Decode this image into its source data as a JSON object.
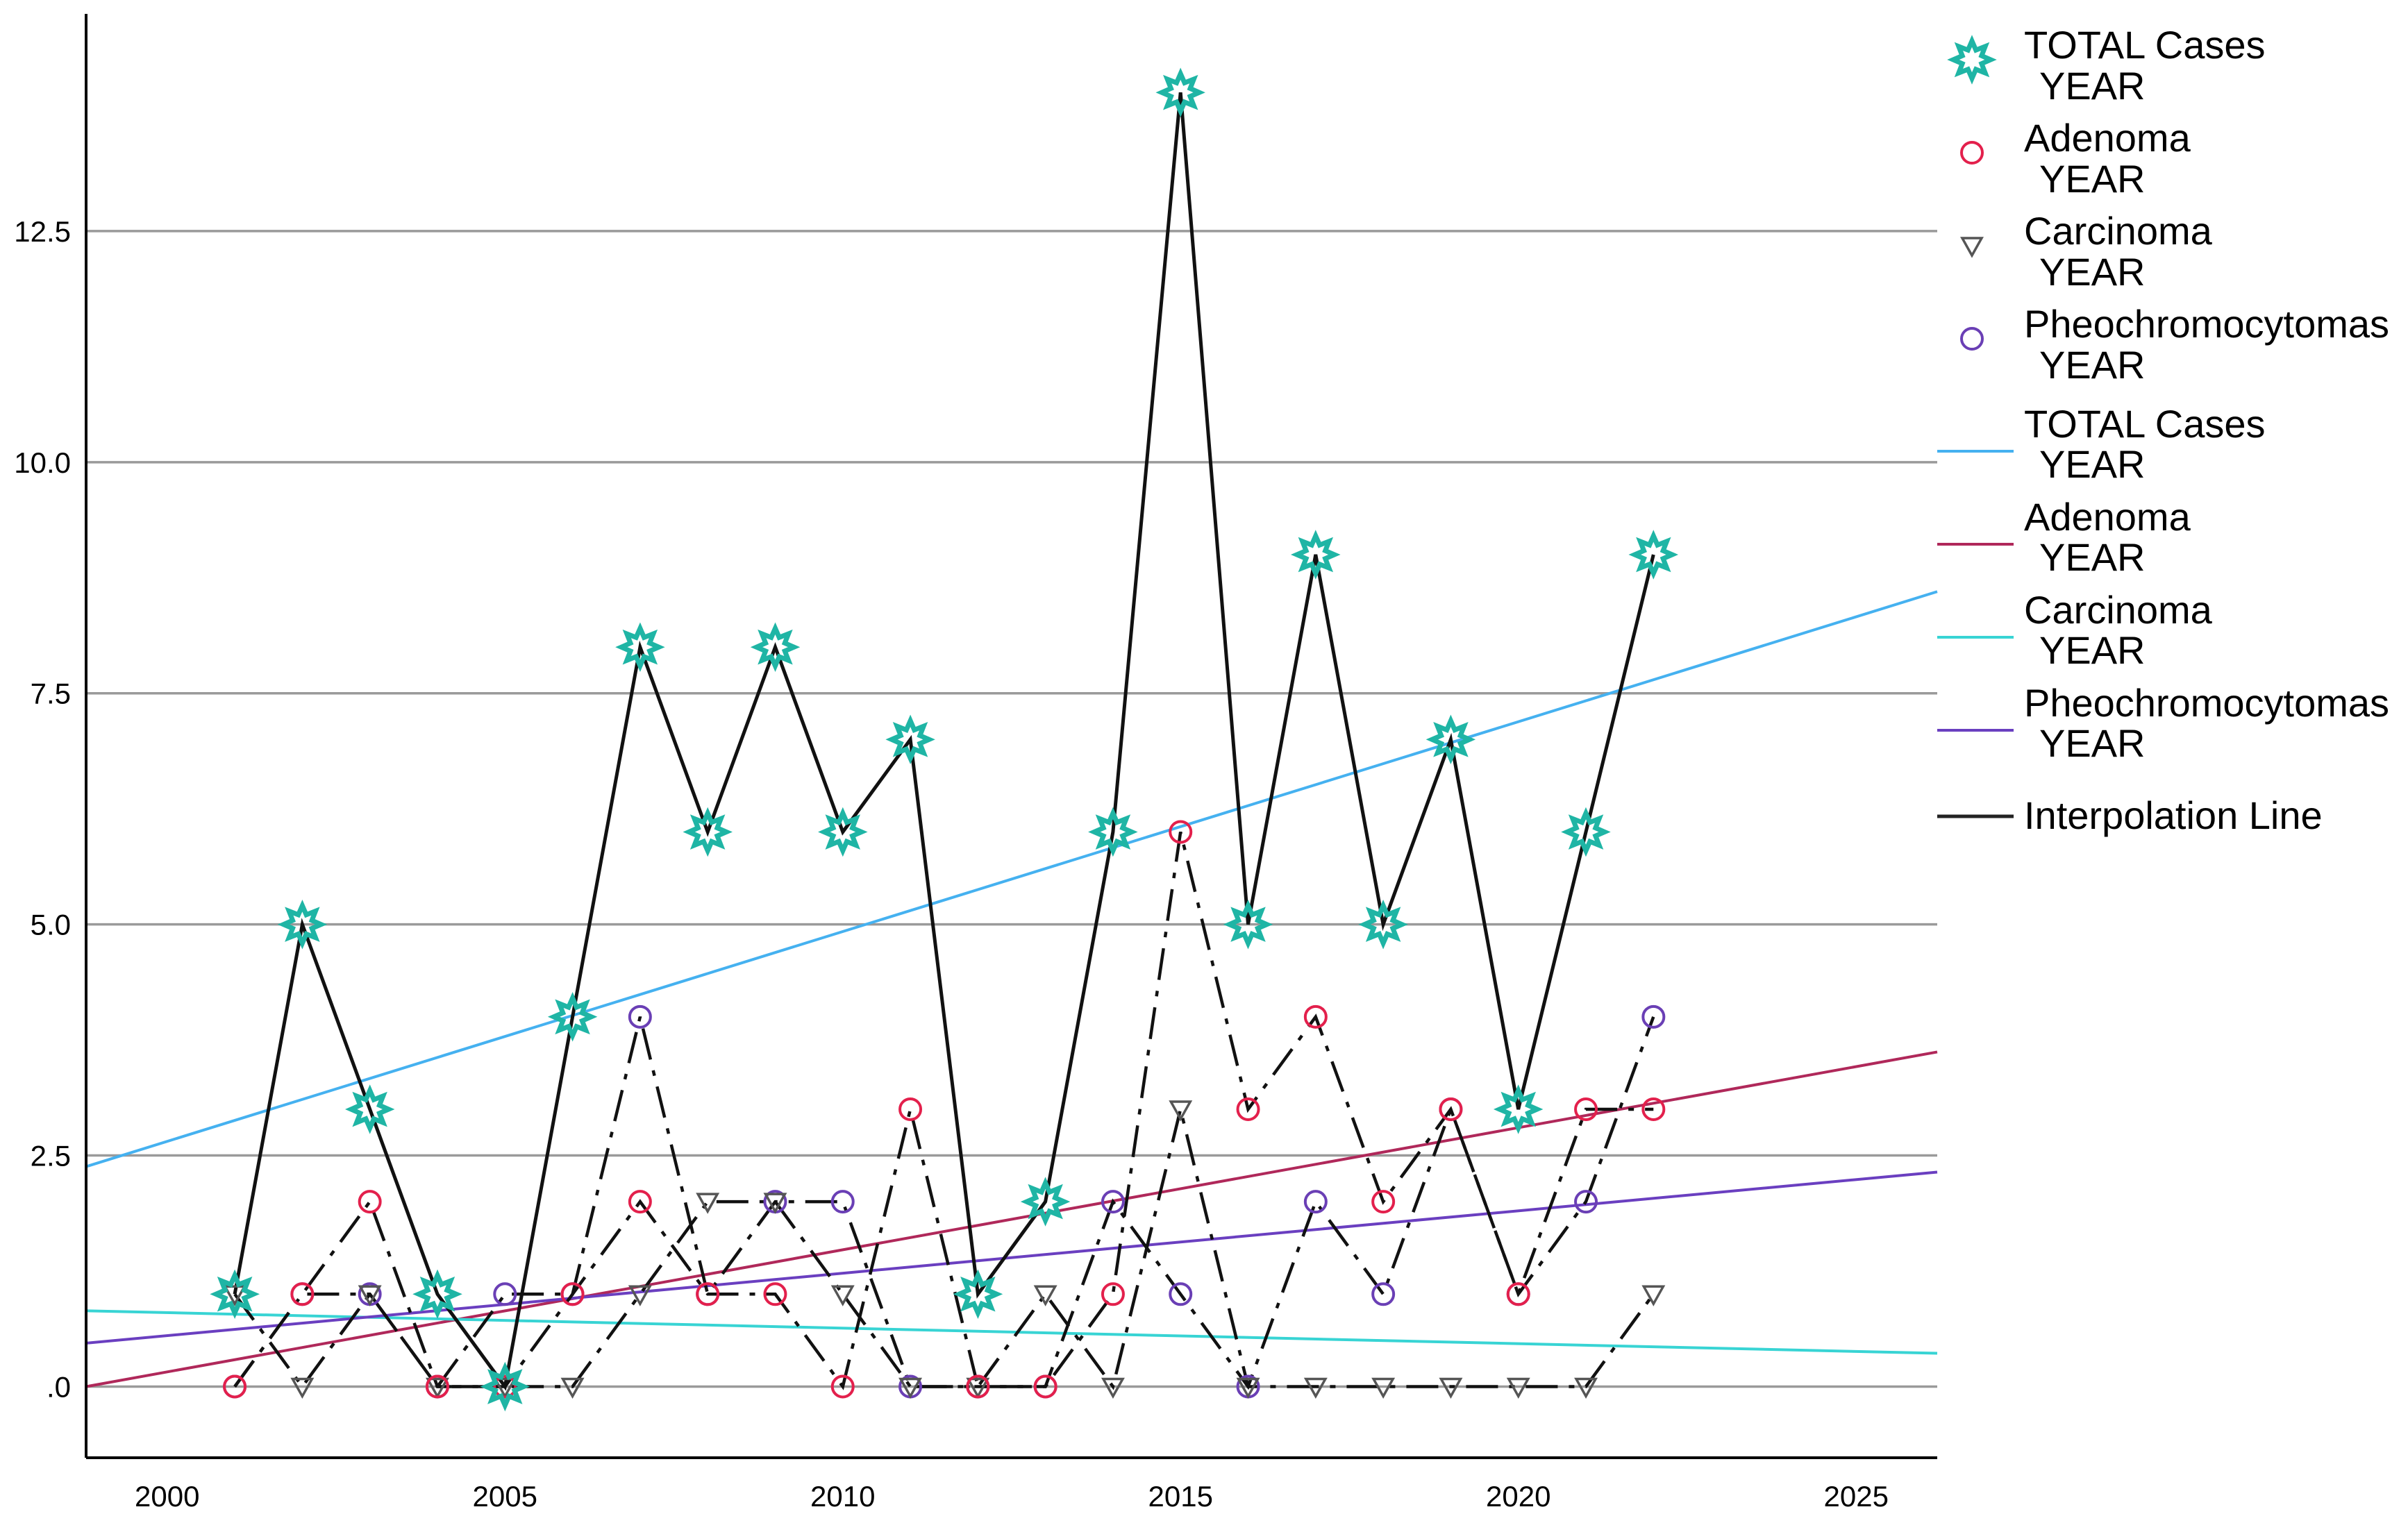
{
  "chart_data": {
    "type": "line",
    "title": "",
    "xlabel": "",
    "ylabel": "",
    "xlim": [
      1998.8,
      2026.2
    ],
    "ylim": [
      -0.77,
      14.85
    ],
    "x_ticks": [
      2000,
      2005,
      2010,
      2015,
      2020,
      2025
    ],
    "x_tick_labels": [
      "2000",
      "2005",
      "2010",
      "2015",
      "2020",
      "2025"
    ],
    "y_ticks": [
      0,
      2.5,
      5.0,
      7.5,
      10.0,
      12.5
    ],
    "y_tick_labels": [
      ".0",
      "2.5",
      "5.0",
      "7.5",
      "10.0",
      "12.5"
    ],
    "grid": "horizontal",
    "legend_position": "right",
    "x": [
      2001,
      2002,
      2003,
      2004,
      2005,
      2006,
      2007,
      2008,
      2009,
      2010,
      2011,
      2012,
      2013,
      2014,
      2015,
      2016,
      2017,
      2018,
      2019,
      2020,
      2021,
      2022
    ],
    "series": [
      {
        "key": "total",
        "name": "TOTAL Cases",
        "name_line2": "YEAR",
        "marker": "star",
        "color": "#1fb5a5",
        "line_style": "solid",
        "values": [
          1,
          5,
          3,
          1,
          0,
          4,
          8,
          6,
          8,
          6,
          7,
          1,
          2,
          6,
          14,
          5,
          9,
          5,
          7,
          3,
          6,
          9
        ]
      },
      {
        "key": "adenoma",
        "name": "Adenoma",
        "name_line2": "YEAR",
        "marker": "circle",
        "color": "#e3204c",
        "line_style": "dashdot",
        "values": [
          0,
          1,
          2,
          0,
          0,
          1,
          2,
          1,
          1,
          0,
          3,
          0,
          0,
          1,
          6,
          3,
          4,
          2,
          3,
          1,
          3,
          3
        ]
      },
      {
        "key": "carcinoma",
        "name": "Carcinoma",
        "name_line2": "YEAR",
        "marker": "triangle-down",
        "color": "#555555",
        "line_style": "dashdot",
        "values": [
          1,
          0,
          1,
          0,
          0,
          0,
          1,
          2,
          2,
          1,
          0,
          0,
          1,
          0,
          3,
          0,
          0,
          0,
          0,
          0,
          0,
          1
        ]
      },
      {
        "key": "pheo",
        "name": "Pheochromocytomas",
        "name_line2": "YEAR",
        "marker": "circle",
        "color": "#6a3fb5",
        "line_style": "dashdot",
        "values": [
          0,
          1,
          1,
          0,
          1,
          1,
          4,
          1,
          2,
          2,
          0,
          0,
          0,
          2,
          1,
          0,
          2,
          1,
          3,
          1,
          2,
          4
        ]
      }
    ],
    "fit_lines": [
      {
        "key": "total-fit",
        "name": "TOTAL Cases",
        "name_line2": "YEAR",
        "color": "#45b1f0",
        "x": [
          1998.8,
          2026.2
        ],
        "y": [
          2.38,
          8.6
        ]
      },
      {
        "key": "adenoma-fit",
        "name": "Adenoma",
        "name_line2": "YEAR",
        "color": "#b0285a",
        "x": [
          1998.8,
          2026.2
        ],
        "y": [
          0.0,
          3.62
        ]
      },
      {
        "key": "carcinoma-fit",
        "name": "Carcinoma",
        "name_line2": "YEAR",
        "color": "#38d4d4",
        "x": [
          1998.8,
          2026.2
        ],
        "y": [
          0.82,
          0.36
        ]
      },
      {
        "key": "pheo-fit",
        "name": "Pheochromocytomas",
        "name_line2": "YEAR",
        "color": "#6a3fc0",
        "x": [
          1998.8,
          2026.2
        ],
        "y": [
          0.47,
          2.32
        ]
      }
    ],
    "interpolation_legend": {
      "name": "Interpolation Line",
      "color": "#222222"
    }
  }
}
